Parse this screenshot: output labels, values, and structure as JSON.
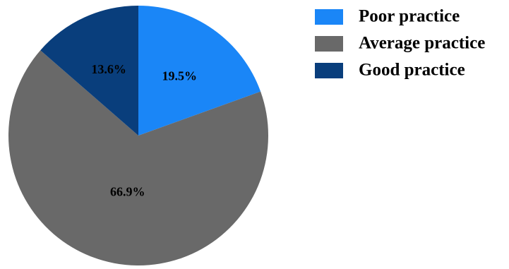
{
  "chart_data": {
    "type": "pie",
    "title": "",
    "legend_position": "top-right",
    "start_direction": "top",
    "rotation": "clockwise",
    "slices": [
      {
        "label": "Poor practice",
        "value": 19.5,
        "value_label": "19.5%",
        "color": "#1a86f7"
      },
      {
        "label": "Average practice",
        "value": 66.9,
        "value_label": "66.9%",
        "color": "#696969"
      },
      {
        "label": "Good practice",
        "value": 13.6,
        "value_label": "13.6%",
        "color": "#093e7c"
      }
    ]
  }
}
